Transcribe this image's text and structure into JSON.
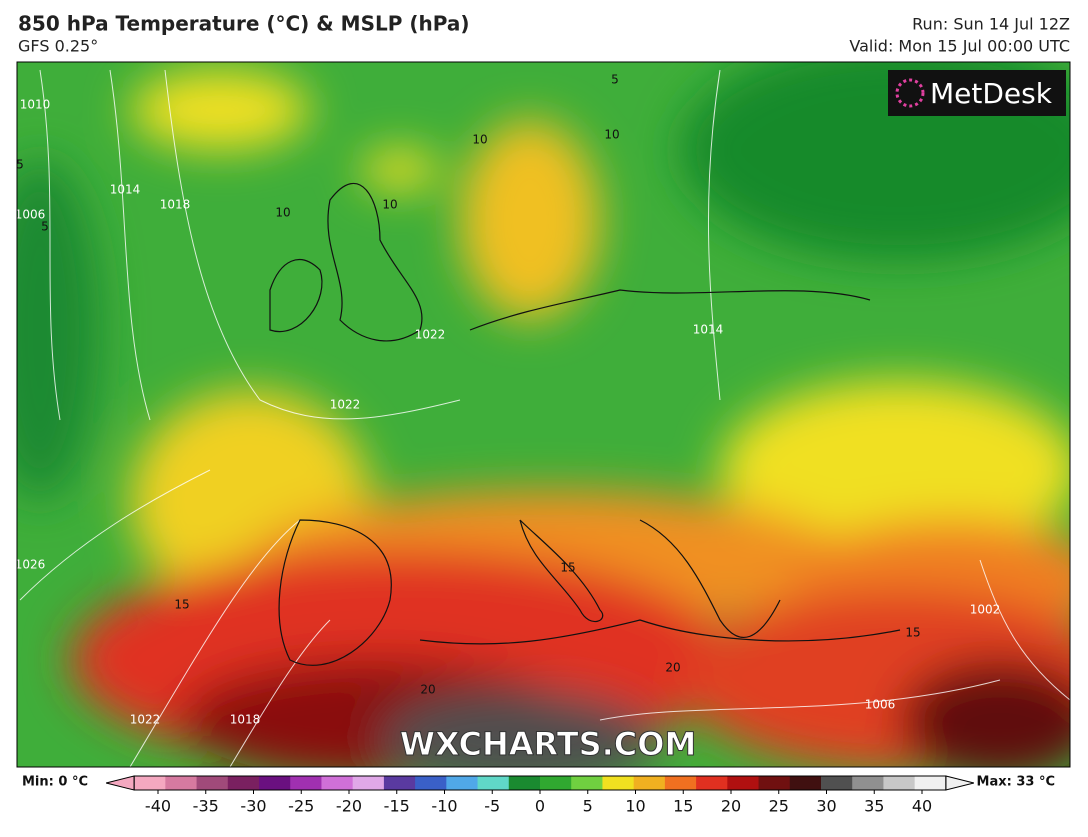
{
  "header": {
    "title": "850 hPa Temperature (°C) & MSLP (hPa)",
    "subtitle": "GFS 0.25°",
    "run": "Run: Sun 14 Jul 12Z",
    "valid": "Valid: Mon 15 Jul 00:00 UTC"
  },
  "map": {
    "logo": "MetDesk",
    "watermark": "WXCHARTS.COM",
    "contour_labels": [
      "1010",
      "1006",
      "1014",
      "1018",
      "1022",
      "1026",
      "1022",
      "1018",
      "1014",
      "1022",
      "1006",
      "1002",
      "5",
      "5",
      "10",
      "10",
      "10",
      "15",
      "15",
      "15",
      "20",
      "20",
      "5",
      "10"
    ]
  },
  "legend": {
    "min_label": "Min: 0 °C",
    "max_label": "Max: 33 °C",
    "range": [
      -42.5,
      42.5
    ],
    "ticks": [
      -40,
      -35,
      -30,
      -25,
      -20,
      -15,
      -10,
      -5,
      0,
      5,
      10,
      15,
      20,
      25,
      30,
      35,
      40
    ],
    "colors": [
      "#f4a8c0",
      "#d67aa0",
      "#a04a7a",
      "#7a2060",
      "#6a1080",
      "#a030b0",
      "#d070d8",
      "#e0a8e8",
      "#5a3aa0",
      "#3a60c8",
      "#50a8e8",
      "#60d8c8",
      "#1a8a30",
      "#30a830",
      "#70d040",
      "#f0e020",
      "#f0b020",
      "#f07020",
      "#e03020",
      "#b01010",
      "#701010",
      "#401010",
      "#505050",
      "#909090",
      "#c8c8c8",
      "#f0f0f0"
    ]
  }
}
